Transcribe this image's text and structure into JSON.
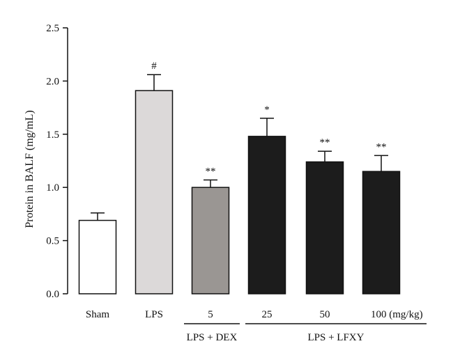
{
  "chart_data": {
    "type": "bar",
    "title": "",
    "xlabel": "",
    "ylabel": "Protein in BALF (mg/mL)",
    "ylim": [
      0,
      2.5
    ],
    "yticks": [
      "0.0",
      "0.5",
      "1.0",
      "1.5",
      "2.0",
      "2.5"
    ],
    "grid": false,
    "categories": [
      "Sham",
      "LPS",
      "5",
      "25",
      "50",
      "100 (mg/kg)"
    ],
    "values": [
      0.69,
      1.91,
      1.0,
      1.48,
      1.24,
      1.15
    ],
    "errors": [
      0.07,
      0.15,
      0.07,
      0.17,
      0.1,
      0.15
    ],
    "significance": [
      "",
      "#",
      "**",
      "*",
      "**",
      "**"
    ],
    "bar_colors": [
      "#ffffff",
      "#dcd9d9",
      "#9a9693",
      "#1c1c1c",
      "#1c1c1c",
      "#1c1c1c"
    ],
    "groups": [
      {
        "label": "LPS + DEX",
        "categories": [
          2
        ]
      },
      {
        "label": "LPS + LFXY",
        "categories": [
          3,
          4,
          5
        ]
      }
    ]
  }
}
